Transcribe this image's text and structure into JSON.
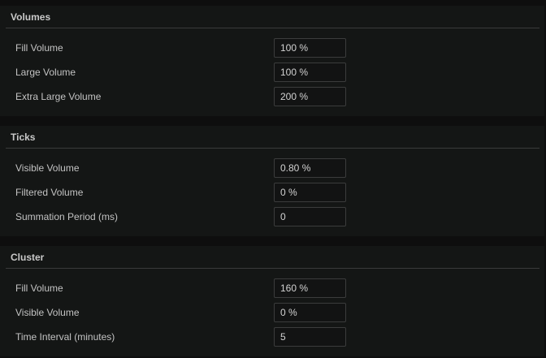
{
  "sections": [
    {
      "title": "Volumes",
      "rows": [
        {
          "label": "Fill Volume",
          "value": "100 %"
        },
        {
          "label": "Large Volume",
          "value": "100 %"
        },
        {
          "label": "Extra Large Volume",
          "value": "200 %"
        }
      ]
    },
    {
      "title": "Ticks",
      "rows": [
        {
          "label": "Visible Volume",
          "value": "0.80 %"
        },
        {
          "label": "Filtered Volume",
          "value": "0 %"
        },
        {
          "label": "Summation Period (ms)",
          "value": "0"
        }
      ]
    },
    {
      "title": "Cluster",
      "rows": [
        {
          "label": "Fill Volume",
          "value": "160 %"
        },
        {
          "label": "Visible Volume",
          "value": "0 %"
        },
        {
          "label": "Time Interval (minutes)",
          "value": "5"
        }
      ]
    }
  ]
}
